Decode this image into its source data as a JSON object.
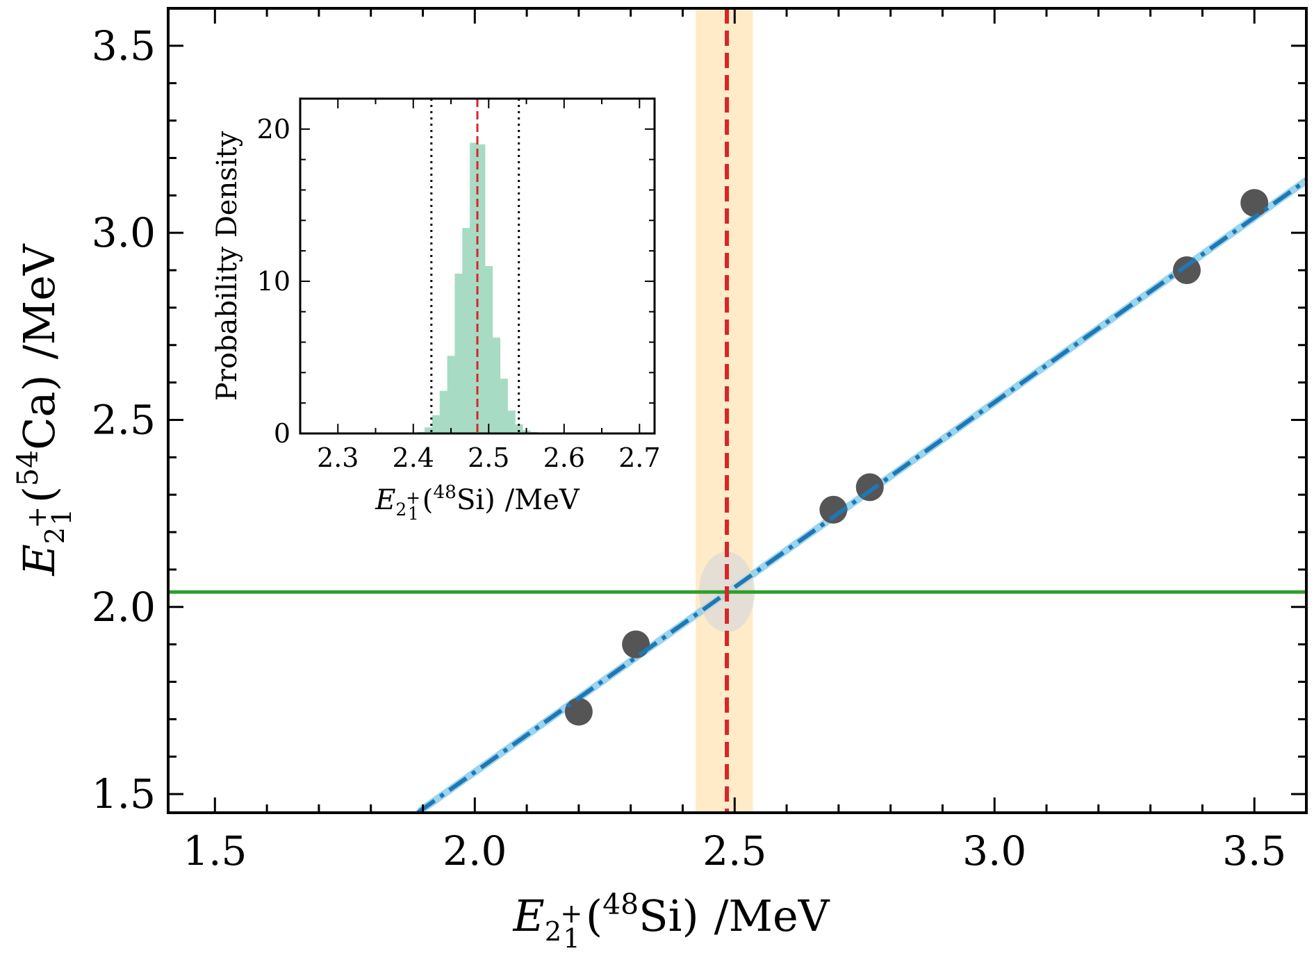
{
  "chart_data": [
    {
      "panel": "main",
      "type": "scatter",
      "xlabel": {
        "symbol": "E",
        "sub": "2",
        "sub_sup": "+",
        "sub_sub": "1",
        "open": "(",
        "sup": "48",
        "nucleus": "Si",
        "close": ")",
        "unit": "/MeV"
      },
      "ylabel": {
        "symbol": "E",
        "sub": "2",
        "sub_sup": "+",
        "sub_sub": "1",
        "open": "(",
        "sup": "54",
        "nucleus": "Ca",
        "close": ")",
        "unit": "/MeV"
      },
      "xlim": [
        1.41,
        3.6
      ],
      "ylim": [
        1.45,
        3.6
      ],
      "xticks": [
        "1.5",
        "2.0",
        "2.5",
        "3.0",
        "3.5"
      ],
      "yticks": [
        "1.5",
        "2.0",
        "2.5",
        "3.0",
        "3.5"
      ],
      "points": [
        {
          "x": 2.2,
          "y": 1.72
        },
        {
          "x": 2.31,
          "y": 1.9
        },
        {
          "x": 2.69,
          "y": 2.26
        },
        {
          "x": 2.76,
          "y": 2.32
        },
        {
          "x": 3.37,
          "y": 2.9
        },
        {
          "x": 3.5,
          "y": 3.08
        }
      ],
      "fit_line": {
        "x": [
          1.89,
          3.6
        ],
        "y": [
          1.45,
          3.14
        ]
      },
      "confidence_band": {
        "x": [
          1.89,
          3.6
        ],
        "half_width": 0.012
      },
      "horizontal_line": {
        "y": 2.04
      },
      "vertical_line": {
        "x": 2.485
      },
      "vertical_band": {
        "x_range": [
          2.425,
          2.535
        ]
      },
      "colors": {
        "points": "#555555",
        "fit_line": "#1f77b4",
        "confidence_band": "#87ceeb",
        "horizontal_line": "#2ca02c",
        "vertical_line": "#d62728",
        "vertical_band": "#ffe4b5"
      }
    },
    {
      "panel": "inset",
      "type": "bar",
      "xlabel": {
        "symbol": "E",
        "sub": "2",
        "sub_sup": "+",
        "sub_sub": "1",
        "open": "(",
        "sup": "48",
        "nucleus": "Si",
        "close": ")",
        "unit": "/MeV"
      },
      "ylabel": "Probability Density",
      "xlim": [
        2.25,
        2.72
      ],
      "ylim": [
        0,
        22
      ],
      "xticks": [
        "2.3",
        "2.4",
        "2.5",
        "2.6",
        "2.7"
      ],
      "yticks": [
        "0",
        "10",
        "20"
      ],
      "bin_width": 0.01,
      "bins": [
        {
          "x": 2.41,
          "y": 0.1
        },
        {
          "x": 2.42,
          "y": 0.4
        },
        {
          "x": 2.43,
          "y": 1.2
        },
        {
          "x": 2.44,
          "y": 2.8
        },
        {
          "x": 2.45,
          "y": 5.1
        },
        {
          "x": 2.46,
          "y": 10.5
        },
        {
          "x": 2.47,
          "y": 13.5
        },
        {
          "x": 2.48,
          "y": 19.1
        },
        {
          "x": 2.49,
          "y": 19.0
        },
        {
          "x": 2.5,
          "y": 11.0
        },
        {
          "x": 2.51,
          "y": 6.3
        },
        {
          "x": 2.52,
          "y": 3.6
        },
        {
          "x": 2.53,
          "y": 1.5
        },
        {
          "x": 2.54,
          "y": 0.6
        },
        {
          "x": 2.55,
          "y": 0.2
        },
        {
          "x": 2.56,
          "y": 0.1
        }
      ],
      "dotted_lines": [
        2.424,
        2.54
      ],
      "dashed_line": 2.485,
      "colors": {
        "bars": "#a8dbc4",
        "dotted": "#000000",
        "dashed": "#d62728"
      }
    }
  ]
}
